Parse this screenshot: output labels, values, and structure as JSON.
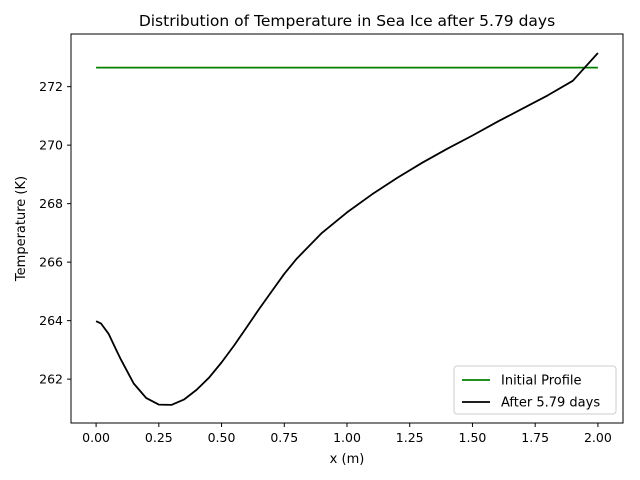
{
  "chart_data": {
    "type": "line",
    "title": "Distribution of Temperature in Sea Ice after 5.79 days",
    "xlabel": "x (m)",
    "ylabel": "Temperature (K)",
    "xlim": [
      -0.1,
      2.1
    ],
    "ylim": [
      260.5,
      273.8
    ],
    "xticks": [
      0.0,
      0.25,
      0.5,
      0.75,
      1.0,
      1.25,
      1.5,
      1.75,
      2.0
    ],
    "xtick_labels": [
      "0.00",
      "0.25",
      "0.50",
      "0.75",
      "1.00",
      "1.25",
      "1.50",
      "1.75",
      "2.00"
    ],
    "yticks": [
      262,
      264,
      266,
      268,
      270,
      272
    ],
    "ytick_labels": [
      "262",
      "264",
      "266",
      "268",
      "270",
      "272"
    ],
    "grid": false,
    "legend_position": "lower-right",
    "series": [
      {
        "name": "Initial Profile",
        "color": "#008000",
        "x": [
          0.0,
          2.0
        ],
        "y": [
          272.65,
          272.65
        ]
      },
      {
        "name": "After 5.79 days",
        "color": "#000000",
        "x": [
          0.0,
          0.02,
          0.05,
          0.08,
          0.1,
          0.15,
          0.2,
          0.25,
          0.3,
          0.35,
          0.4,
          0.45,
          0.5,
          0.55,
          0.6,
          0.65,
          0.7,
          0.75,
          0.8,
          0.9,
          1.0,
          1.1,
          1.2,
          1.3,
          1.4,
          1.5,
          1.6,
          1.7,
          1.8,
          1.9,
          2.0
        ],
        "y": [
          263.98,
          263.9,
          263.55,
          263.0,
          262.65,
          261.85,
          261.35,
          261.13,
          261.12,
          261.3,
          261.63,
          262.05,
          262.57,
          263.15,
          263.77,
          264.4,
          265.0,
          265.6,
          266.12,
          267.0,
          267.7,
          268.32,
          268.88,
          269.4,
          269.88,
          270.33,
          270.8,
          271.25,
          271.7,
          272.2,
          273.15
        ]
      }
    ]
  }
}
